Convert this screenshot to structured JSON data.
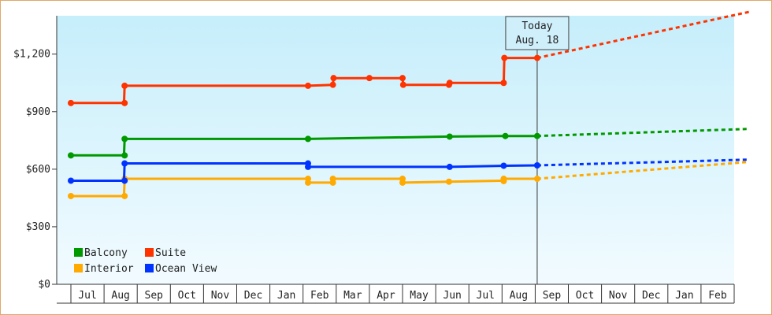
{
  "chart_data": {
    "type": "line",
    "title": "",
    "xlabel": "",
    "ylabel": "",
    "ylim": [
      0,
      1400
    ],
    "y_ticks": [
      {
        "value": 0,
        "label": "$0"
      },
      {
        "value": 300,
        "label": "$300"
      },
      {
        "value": 600,
        "label": "$600"
      },
      {
        "value": 900,
        "label": "$900"
      },
      {
        "value": 1200,
        "label": "$1,200"
      }
    ],
    "x_months": [
      "Jul",
      "Aug",
      "Sep",
      "Oct",
      "Nov",
      "Dec",
      "Jan",
      "Feb",
      "Mar",
      "Apr",
      "May",
      "Jun",
      "Jul",
      "Aug",
      "Sep",
      "Oct",
      "Nov",
      "Dec",
      "Jan",
      "Feb"
    ],
    "today": {
      "line1": "Today",
      "line2": "Aug. 18",
      "x": 14.06
    },
    "grid": false,
    "legend_position": "bottom-left",
    "series": [
      {
        "name": "Suite",
        "color": "#ff3300",
        "points": [
          [
            0.0,
            945
          ],
          [
            1.6,
            945
          ],
          [
            1.62,
            1035
          ],
          [
            7.15,
            1035
          ],
          [
            7.9,
            1040
          ],
          [
            7.92,
            1075
          ],
          [
            9.0,
            1075
          ],
          [
            10.0,
            1075
          ],
          [
            10.02,
            1040
          ],
          [
            11.4,
            1040
          ],
          [
            11.42,
            1050
          ],
          [
            13.05,
            1050
          ],
          [
            13.07,
            1180
          ],
          [
            14.06,
            1180
          ]
        ],
        "markers": [
          [
            0.0,
            945
          ],
          [
            1.62,
            945
          ],
          [
            1.62,
            1035
          ],
          [
            7.15,
            1035
          ],
          [
            7.9,
            1040
          ],
          [
            7.92,
            1075
          ],
          [
            9.0,
            1075
          ],
          [
            10.0,
            1075
          ],
          [
            10.02,
            1040
          ],
          [
            11.4,
            1040
          ],
          [
            11.42,
            1050
          ],
          [
            13.05,
            1050
          ],
          [
            13.07,
            1180
          ],
          [
            14.06,
            1180
          ]
        ],
        "forecast": [
          [
            14.06,
            1180
          ],
          [
            20.45,
            1420
          ]
        ]
      },
      {
        "name": "Balcony",
        "color": "#009900",
        "points": [
          [
            0.0,
            672
          ],
          [
            1.6,
            672
          ],
          [
            1.62,
            758
          ],
          [
            7.15,
            758
          ],
          [
            11.42,
            770
          ],
          [
            13.1,
            773
          ],
          [
            14.06,
            773
          ]
        ],
        "markers": [
          [
            0.0,
            672
          ],
          [
            1.62,
            672
          ],
          [
            1.62,
            758
          ],
          [
            7.15,
            758
          ],
          [
            11.42,
            770
          ],
          [
            13.1,
            773
          ],
          [
            14.06,
            773
          ]
        ],
        "forecast": [
          [
            14.06,
            773
          ],
          [
            20.45,
            810
          ]
        ]
      },
      {
        "name": "Interior",
        "color": "#ffaa00",
        "points": [
          [
            0.0,
            460
          ],
          [
            1.6,
            460
          ],
          [
            1.62,
            550
          ],
          [
            7.15,
            550
          ],
          [
            7.17,
            530
          ],
          [
            7.9,
            530
          ],
          [
            7.92,
            550
          ],
          [
            10.0,
            550
          ],
          [
            10.02,
            530
          ],
          [
            11.4,
            535
          ],
          [
            13.05,
            540
          ],
          [
            13.07,
            550
          ],
          [
            14.06,
            550
          ]
        ],
        "markers": [
          [
            0.0,
            460
          ],
          [
            1.62,
            460
          ],
          [
            1.62,
            550
          ],
          [
            7.15,
            550
          ],
          [
            7.15,
            530
          ],
          [
            7.9,
            530
          ],
          [
            7.9,
            550
          ],
          [
            10.0,
            550
          ],
          [
            10.0,
            530
          ],
          [
            11.4,
            535
          ],
          [
            13.05,
            538
          ],
          [
            13.05,
            550
          ],
          [
            14.06,
            550
          ]
        ],
        "forecast": [
          [
            14.06,
            550
          ],
          [
            20.45,
            638
          ]
        ]
      },
      {
        "name": "Ocean View",
        "color": "#0033ff",
        "points": [
          [
            0.0,
            540
          ],
          [
            1.6,
            540
          ],
          [
            1.62,
            630
          ],
          [
            7.15,
            630
          ],
          [
            7.17,
            612
          ],
          [
            11.42,
            612
          ],
          [
            13.05,
            618
          ],
          [
            14.06,
            620
          ]
        ],
        "markers": [
          [
            0.0,
            540
          ],
          [
            1.62,
            540
          ],
          [
            1.62,
            630
          ],
          [
            7.15,
            630
          ],
          [
            7.15,
            612
          ],
          [
            11.42,
            612
          ],
          [
            13.05,
            618
          ],
          [
            14.06,
            620
          ]
        ],
        "forecast": [
          [
            14.06,
            620
          ],
          [
            20.45,
            650
          ]
        ]
      }
    ],
    "legend": [
      {
        "name": "Balcony",
        "color": "#009900"
      },
      {
        "name": "Suite",
        "color": "#ff3300"
      },
      {
        "name": "Interior",
        "color": "#ffaa00"
      },
      {
        "name": "Ocean View",
        "color": "#0033ff"
      }
    ]
  }
}
